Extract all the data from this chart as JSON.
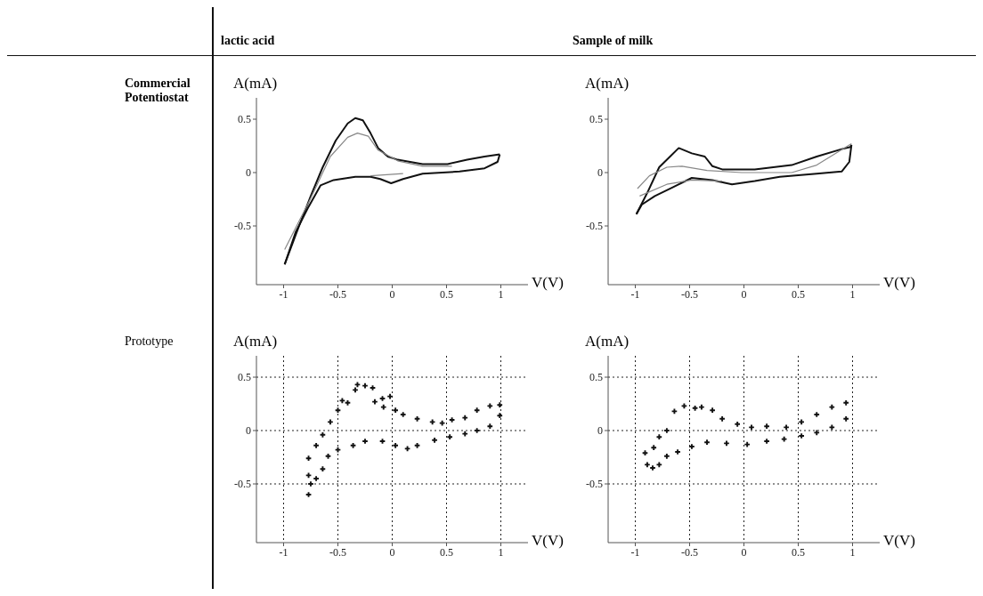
{
  "chart_data": [
    {
      "type": "line",
      "title": "lactic acid",
      "annotations": [
        "Commercial Potentiostat"
      ],
      "xlabel": "V(V)",
      "ylabel": "A(mA)",
      "xlim": [
        -1.25,
        1.25
      ],
      "ylim": [
        -1.05,
        0.7
      ],
      "xticks": [
        -1,
        -0.5,
        0,
        0.5,
        1
      ],
      "yticks": [
        -0.5,
        0,
        0.5
      ],
      "series": [
        {
          "color": "#111111",
          "x": [
            -0.99,
            -0.865,
            -0.75,
            -0.64,
            -0.52,
            -0.41,
            -0.34,
            -0.27,
            -0.2,
            -0.13,
            -0.04,
            0.05,
            0.28,
            0.51,
            0.69,
            0.85,
            0.99
          ],
          "values": [
            -0.86,
            -0.52,
            -0.22,
            0.05,
            0.3,
            0.46,
            0.51,
            0.49,
            0.37,
            0.23,
            0.15,
            0.12,
            0.08,
            0.08,
            0.12,
            0.15,
            0.17
          ]
        },
        {
          "color": "#111111",
          "x": [
            0.99,
            0.97,
            0.85,
            0.62,
            0.28,
            0.1,
            -0.01,
            -0.11,
            -0.2,
            -0.34,
            -0.54,
            -0.66,
            -0.77,
            -0.89,
            -0.99
          ],
          "values": [
            0.17,
            0.1,
            0.04,
            0.01,
            -0.01,
            -0.06,
            -0.1,
            -0.06,
            -0.04,
            -0.04,
            -0.07,
            -0.12,
            -0.32,
            -0.56,
            -0.86
          ]
        },
        {
          "color": "#888888",
          "x": [
            -0.99,
            -0.75,
            -0.57,
            -0.41,
            -0.32,
            -0.22,
            -0.13,
            0.05,
            0.28,
            0.55
          ],
          "values": [
            -0.72,
            -0.24,
            0.15,
            0.33,
            0.37,
            0.34,
            0.21,
            0.11,
            0.06,
            0.06
          ]
        },
        {
          "color": "#888888",
          "x": [
            -0.2,
            0.1
          ],
          "values": [
            -0.03,
            -0.01
          ]
        }
      ]
    },
    {
      "type": "line",
      "title": "Sample of milk",
      "xlabel": "V(V)",
      "ylabel": "A(mA)",
      "xlim": [
        -1.25,
        1.25
      ],
      "ylim": [
        -1.05,
        0.7
      ],
      "xticks": [
        -1,
        -0.5,
        0,
        0.5,
        1
      ],
      "yticks": [
        -0.5,
        0,
        0.5
      ],
      "series": [
        {
          "color": "#111111",
          "x": [
            -0.99,
            -0.89,
            -0.78,
            -0.68,
            -0.6,
            -0.48,
            -0.36,
            -0.29,
            -0.2,
            0.1,
            0.44,
            0.67,
            0.9,
            0.98,
            0.99
          ],
          "values": [
            -0.39,
            -0.19,
            0.05,
            0.15,
            0.23,
            0.18,
            0.15,
            0.06,
            0.03,
            0.03,
            0.07,
            0.15,
            0.22,
            0.24,
            0.26
          ]
        },
        {
          "color": "#111111",
          "x": [
            0.99,
            0.97,
            0.9,
            0.67,
            0.33,
            0.1,
            -0.11,
            -0.29,
            -0.48,
            -0.66,
            -0.82,
            -0.94,
            -0.99
          ],
          "values": [
            0.26,
            0.1,
            0.01,
            -0.01,
            -0.04,
            -0.08,
            -0.11,
            -0.07,
            -0.05,
            -0.14,
            -0.22,
            -0.3,
            -0.39
          ]
        },
        {
          "color": "#888888",
          "x": [
            -0.98,
            -0.87,
            -0.71,
            -0.57,
            -0.34,
            -0.02,
            0.44,
            0.67,
            0.99
          ],
          "values": [
            -0.15,
            -0.03,
            0.05,
            0.06,
            0.02,
            0,
            0,
            0.07,
            0.27
          ]
        },
        {
          "color": "#888888",
          "x": [
            -0.96,
            -0.71,
            -0.48,
            -0.2
          ],
          "values": [
            -0.22,
            -0.11,
            -0.07,
            -0.08
          ]
        }
      ]
    },
    {
      "type": "scatter",
      "annotations": [
        "Prototype"
      ],
      "xlabel": "V(V)",
      "ylabel": "A(mA)",
      "xlim": [
        -1.25,
        1.25
      ],
      "ylim": [
        -1.05,
        0.7
      ],
      "xticks": [
        -1,
        -0.5,
        0,
        0.5,
        1
      ],
      "yticks": [
        -0.5,
        0,
        0.5
      ],
      "grid": true,
      "marker": "cross",
      "series": [
        {
          "color": "#111111",
          "x": [
            -0.77,
            -0.7,
            -0.64,
            -0.57,
            -0.5,
            -0.46,
            -0.41,
            -0.34,
            -0.32,
            -0.25,
            -0.18,
            -0.16,
            -0.09,
            -0.08,
            -0.02,
            0.03,
            0.1,
            0.23,
            0.37,
            0.46,
            0.55,
            0.67,
            0.78,
            0.9,
            0.99,
            0.99,
            0.9,
            0.78,
            0.67,
            0.53,
            0.39,
            0.23,
            0.14,
            0.03,
            -0.09,
            -0.25,
            -0.36,
            -0.5,
            -0.59,
            -0.64,
            -0.7,
            -0.75,
            -0.77,
            -0.77
          ],
          "values": [
            -0.26,
            -0.14,
            -0.04,
            0.08,
            0.19,
            0.28,
            0.26,
            0.38,
            0.43,
            0.42,
            0.4,
            0.27,
            0.3,
            0.22,
            0.32,
            0.19,
            0.15,
            0.11,
            0.08,
            0.07,
            0.1,
            0.12,
            0.19,
            0.23,
            0.24,
            0.14,
            0.04,
            0,
            -0.03,
            -0.06,
            -0.09,
            -0.14,
            -0.17,
            -0.14,
            -0.1,
            -0.1,
            -0.14,
            -0.18,
            -0.24,
            -0.36,
            -0.45,
            -0.5,
            -0.6,
            -0.42
          ]
        }
      ]
    },
    {
      "type": "scatter",
      "xlabel": "V(V)",
      "ylabel": "A(mA)",
      "xlim": [
        -1.25,
        1.25
      ],
      "ylim": [
        -1.05,
        0.7
      ],
      "xticks": [
        -1,
        -0.5,
        0,
        0.5,
        1
      ],
      "yticks": [
        -0.5,
        0,
        0.5
      ],
      "grid": true,
      "marker": "cross",
      "series": [
        {
          "color": "#111111",
          "x": [
            -0.91,
            -0.89,
            -0.84,
            -0.83,
            -0.78,
            -0.71,
            -0.64,
            -0.55,
            -0.45,
            -0.39,
            -0.29,
            -0.2,
            -0.06,
            0.07,
            0.21,
            0.39,
            0.53,
            0.67,
            0.81,
            0.94,
            0.94,
            0.81,
            0.67,
            0.53,
            0.37,
            0.21,
            0.03,
            -0.16,
            -0.34,
            -0.48,
            -0.61,
            -0.71,
            -0.78
          ],
          "values": [
            -0.21,
            -0.32,
            -0.35,
            -0.16,
            -0.06,
            0,
            0.18,
            0.23,
            0.21,
            0.22,
            0.19,
            0.11,
            0.06,
            0.03,
            0.04,
            0.03,
            0.08,
            0.15,
            0.22,
            0.26,
            0.11,
            0.03,
            -0.02,
            -0.05,
            -0.08,
            -0.1,
            -0.13,
            -0.12,
            -0.11,
            -0.15,
            -0.2,
            -0.24,
            -0.32
          ]
        }
      ]
    }
  ]
}
